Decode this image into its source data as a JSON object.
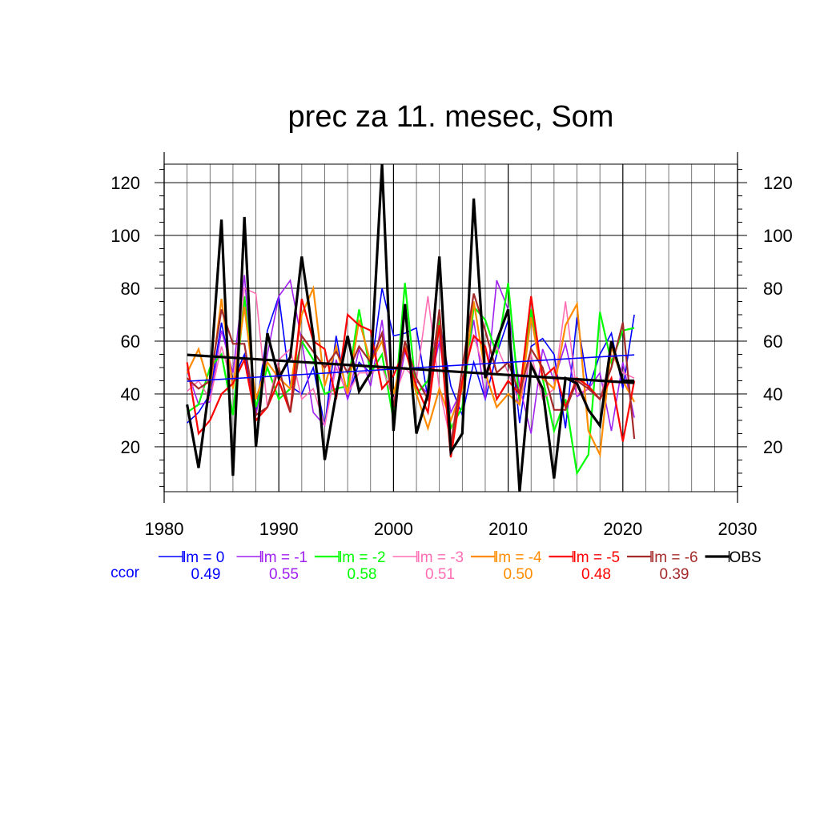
{
  "chart_data": {
    "type": "line",
    "title": "prec za 11. mesec, Som",
    "xlabel": "",
    "ylabel": "",
    "xlim": [
      1980,
      2030
    ],
    "ylim": [
      3,
      127
    ],
    "x_ticks": [
      1980,
      1990,
      2000,
      2010,
      2020,
      2030
    ],
    "y_ticks": [
      20,
      40,
      60,
      80,
      100,
      120
    ],
    "grid": true,
    "x": [
      1982,
      1983,
      1984,
      1985,
      1986,
      1987,
      1988,
      1989,
      1990,
      1991,
      1992,
      1993,
      1994,
      1995,
      1996,
      1997,
      1998,
      1999,
      2000,
      2001,
      2002,
      2003,
      2004,
      2005,
      2006,
      2007,
      2008,
      2009,
      2010,
      2011,
      2012,
      2013,
      2014,
      2015,
      2016,
      2017,
      2018,
      2019,
      2020,
      2021
    ],
    "series": [
      {
        "name": "lm = 0",
        "color": "#0000ff",
        "width": 1.6,
        "values": [
          29,
          33,
          40,
          67,
          45,
          55,
          33,
          64,
          77,
          43,
          40,
          50,
          28,
          62,
          38,
          52,
          48,
          80,
          62,
          63,
          65,
          38,
          68,
          43,
          32,
          52,
          38,
          55,
          68,
          29,
          58,
          61,
          55,
          27,
          69,
          42,
          55,
          63,
          42,
          70
        ]
      },
      {
        "name": "lm = -1",
        "color": "#a020f0",
        "width": 1.6,
        "values": [
          49,
          36,
          37,
          64,
          48,
          85,
          32,
          55,
          77,
          83,
          60,
          33,
          28,
          53,
          38,
          57,
          43,
          68,
          33,
          56,
          45,
          40,
          60,
          33,
          42,
          68,
          38,
          83,
          72,
          43,
          25,
          57,
          45,
          59,
          39,
          42,
          48,
          26,
          52,
          31
        ]
      },
      {
        "name": "lm = -2",
        "color": "#00ff00",
        "width": 2.2,
        "values": [
          33,
          36,
          50,
          55,
          32,
          77,
          35,
          50,
          38,
          42,
          60,
          53,
          40,
          42,
          43,
          72,
          48,
          55,
          30,
          82,
          40,
          45,
          68,
          27,
          35,
          73,
          68,
          55,
          82,
          36,
          72,
          46,
          26,
          38,
          10,
          17,
          71,
          52,
          64,
          65
        ]
      },
      {
        "name": "lm = -3",
        "color": "#ff6eb4",
        "width": 1.6,
        "values": [
          41,
          45,
          38,
          58,
          43,
          80,
          78,
          35,
          53,
          57,
          38,
          42,
          28,
          50,
          40,
          48,
          48,
          50,
          38,
          50,
          45,
          77,
          42,
          22,
          50,
          62,
          48,
          58,
          48,
          36,
          55,
          38,
          42,
          75,
          40,
          42,
          38,
          55,
          48,
          46
        ]
      },
      {
        "name": "lm = -4",
        "color": "#ff8c00",
        "width": 2.2,
        "values": [
          48,
          57,
          42,
          76,
          42,
          73,
          38,
          52,
          46,
          42,
          70,
          80,
          43,
          58,
          40,
          68,
          52,
          60,
          40,
          58,
          40,
          27,
          42,
          30,
          42,
          75,
          48,
          35,
          40,
          36,
          69,
          46,
          42,
          66,
          74,
          26,
          17,
          58,
          45,
          37
        ]
      },
      {
        "name": "lm = -5",
        "color": "#ff0000",
        "width": 2.2,
        "values": [
          52,
          25,
          30,
          40,
          44,
          53,
          30,
          35,
          45,
          33,
          76,
          60,
          57,
          38,
          70,
          66,
          64,
          42,
          47,
          57,
          43,
          33,
          66,
          16,
          45,
          62,
          58,
          38,
          45,
          40,
          77,
          46,
          50,
          35,
          46,
          43,
          38,
          46,
          22,
          45
        ]
      },
      {
        "name": "lm = -6",
        "color": "#a52a2a",
        "width": 2.2,
        "values": [
          46,
          42,
          45,
          72,
          59,
          59,
          32,
          35,
          50,
          33,
          62,
          56,
          50,
          56,
          48,
          58,
          52,
          63,
          35,
          60,
          46,
          38,
          72,
          20,
          50,
          78,
          64,
          48,
          52,
          40,
          57,
          50,
          34,
          34,
          45,
          42,
          38,
          50,
          67,
          23
        ]
      },
      {
        "name": "OBS",
        "color": "#000000",
        "width": 3.2,
        "values": [
          36,
          12,
          45,
          106,
          9,
          107,
          20,
          63,
          46,
          54,
          92,
          62,
          15,
          40,
          62,
          41,
          48,
          127,
          26,
          74,
          25,
          40,
          92,
          18,
          25,
          114,
          46,
          60,
          72,
          3,
          51,
          42,
          8,
          46,
          44,
          34,
          28,
          60,
          45,
          45
        ]
      }
    ],
    "trend_lines": [
      {
        "name": "lm = 0 trend",
        "color": "#0000ff",
        "width": 1.6,
        "x": [
          1982,
          2021
        ],
        "values": [
          44.8,
          54.8
        ]
      },
      {
        "name": "OBS trend",
        "color": "#000000",
        "width": 3.2,
        "x": [
          1982,
          2021
        ],
        "values": [
          54.8,
          44.2
        ]
      }
    ],
    "legend": {
      "placement": "below",
      "label": "ccor",
      "label_color": "#0000ff",
      "ccor_values": [
        "0.49",
        "0.55",
        "0.58",
        "0.51",
        "0.50",
        "0.48",
        "0.39",
        ""
      ]
    }
  }
}
